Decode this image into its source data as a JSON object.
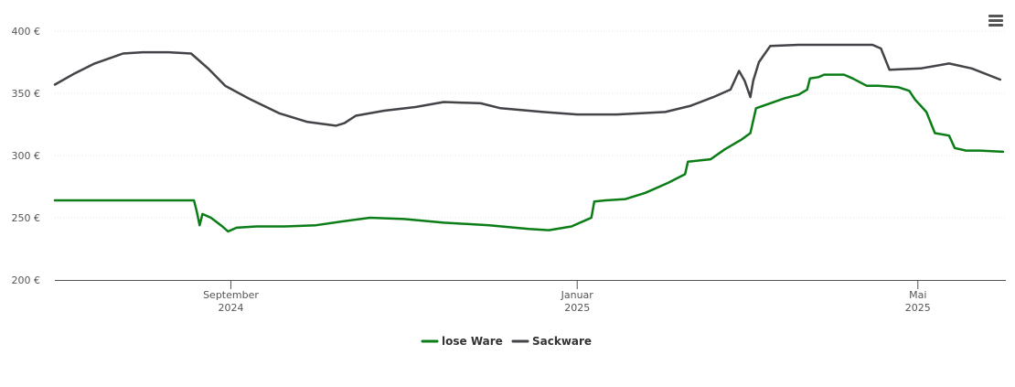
{
  "chart_data": {
    "type": "line",
    "title": "",
    "xlabel": "",
    "ylabel": "",
    "ylim": [
      200,
      400
    ],
    "y_ticks": [
      "200 €",
      "250 €",
      "300 €",
      "350 €",
      "400 €"
    ],
    "y_tick_values": [
      200,
      250,
      300,
      350,
      400
    ],
    "x_range": [
      "2024-07-01",
      "2025-06-01"
    ],
    "x_ticks": [
      {
        "date": "2024-09-01",
        "month": "September",
        "year": "2024"
      },
      {
        "date": "2025-01-01",
        "month": "Januar",
        "year": "2025"
      },
      {
        "date": "2025-05-01",
        "month": "Mai",
        "year": "2025"
      }
    ],
    "grid": "horizontal",
    "legend_position": "bottom-center",
    "series": [
      {
        "name": "lose Ware",
        "color": "#0a7d16",
        "points": [
          [
            "2024-07-01",
            264
          ],
          [
            "2024-07-15",
            264
          ],
          [
            "2024-08-01",
            264
          ],
          [
            "2024-08-15",
            264
          ],
          [
            "2024-08-19",
            264
          ],
          [
            "2024-08-20",
            255
          ],
          [
            "2024-08-21",
            244
          ],
          [
            "2024-08-22",
            253
          ],
          [
            "2024-08-25",
            250
          ],
          [
            "2024-08-29",
            243
          ],
          [
            "2024-08-31",
            239
          ],
          [
            "2024-09-03",
            242
          ],
          [
            "2024-09-10",
            243
          ],
          [
            "2024-09-20",
            243
          ],
          [
            "2024-10-01",
            244
          ],
          [
            "2024-10-10",
            247
          ],
          [
            "2024-10-20",
            250
          ],
          [
            "2024-11-01",
            249
          ],
          [
            "2024-11-15",
            246
          ],
          [
            "2024-12-01",
            244
          ],
          [
            "2024-12-15",
            241
          ],
          [
            "2024-12-22",
            240
          ],
          [
            "2024-12-30",
            243
          ],
          [
            "2025-01-04",
            248
          ],
          [
            "2025-01-06",
            250
          ],
          [
            "2025-01-07",
            263
          ],
          [
            "2025-01-11",
            264
          ],
          [
            "2025-01-18",
            265
          ],
          [
            "2025-01-25",
            270
          ],
          [
            "2025-02-02",
            278
          ],
          [
            "2025-02-08",
            285
          ],
          [
            "2025-02-09",
            295
          ],
          [
            "2025-02-13",
            296
          ],
          [
            "2025-02-17",
            297
          ],
          [
            "2025-02-22",
            305
          ],
          [
            "2025-02-28",
            313
          ],
          [
            "2025-03-03",
            318
          ],
          [
            "2025-03-05",
            338
          ],
          [
            "2025-03-10",
            342
          ],
          [
            "2025-03-15",
            346
          ],
          [
            "2025-03-20",
            349
          ],
          [
            "2025-03-23",
            353
          ],
          [
            "2025-03-24",
            362
          ],
          [
            "2025-03-27",
            363
          ],
          [
            "2025-03-29",
            365
          ],
          [
            "2025-04-01",
            365
          ],
          [
            "2025-04-05",
            365
          ],
          [
            "2025-04-08",
            362
          ],
          [
            "2025-04-13",
            356
          ],
          [
            "2025-04-17",
            356
          ],
          [
            "2025-04-24",
            355
          ],
          [
            "2025-04-28",
            352
          ],
          [
            "2025-04-30",
            345
          ],
          [
            "2025-05-04",
            335
          ],
          [
            "2025-05-07",
            318
          ],
          [
            "2025-05-12",
            316
          ],
          [
            "2025-05-14",
            306
          ],
          [
            "2025-05-18",
            304
          ],
          [
            "2025-05-23",
            304
          ],
          [
            "2025-05-31",
            303
          ]
        ]
      },
      {
        "name": "Sackware",
        "color": "#434348",
        "points": [
          [
            "2024-07-01",
            357
          ],
          [
            "2024-07-08",
            366
          ],
          [
            "2024-07-15",
            374
          ],
          [
            "2024-07-25",
            382
          ],
          [
            "2024-08-01",
            383
          ],
          [
            "2024-08-10",
            383
          ],
          [
            "2024-08-18",
            382
          ],
          [
            "2024-08-24",
            370
          ],
          [
            "2024-08-30",
            356
          ],
          [
            "2024-09-08",
            345
          ],
          [
            "2024-09-18",
            334
          ],
          [
            "2024-09-28",
            327
          ],
          [
            "2024-10-08",
            324
          ],
          [
            "2024-10-11",
            326
          ],
          [
            "2024-10-15",
            332
          ],
          [
            "2024-10-25",
            336
          ],
          [
            "2024-11-05",
            339
          ],
          [
            "2024-11-15",
            343
          ],
          [
            "2024-11-28",
            342
          ],
          [
            "2024-12-05",
            338
          ],
          [
            "2024-12-20",
            335
          ],
          [
            "2025-01-01",
            333
          ],
          [
            "2025-01-15",
            333
          ],
          [
            "2025-02-01",
            335
          ],
          [
            "2025-02-10",
            340
          ],
          [
            "2025-02-18",
            347
          ],
          [
            "2025-02-24",
            353
          ],
          [
            "2025-02-27",
            368
          ],
          [
            "2025-03-01",
            360
          ],
          [
            "2025-03-03",
            347
          ],
          [
            "2025-03-04",
            360
          ],
          [
            "2025-03-06",
            375
          ],
          [
            "2025-03-10",
            388
          ],
          [
            "2025-03-20",
            389
          ],
          [
            "2025-04-01",
            389
          ],
          [
            "2025-04-15",
            389
          ],
          [
            "2025-04-18",
            386
          ],
          [
            "2025-04-21",
            369
          ],
          [
            "2025-05-02",
            370
          ],
          [
            "2025-05-12",
            374
          ],
          [
            "2025-05-20",
            370
          ],
          [
            "2025-05-30",
            361
          ]
        ]
      }
    ]
  },
  "toolbar": {
    "menu_icon": "hamburger-menu-icon"
  }
}
